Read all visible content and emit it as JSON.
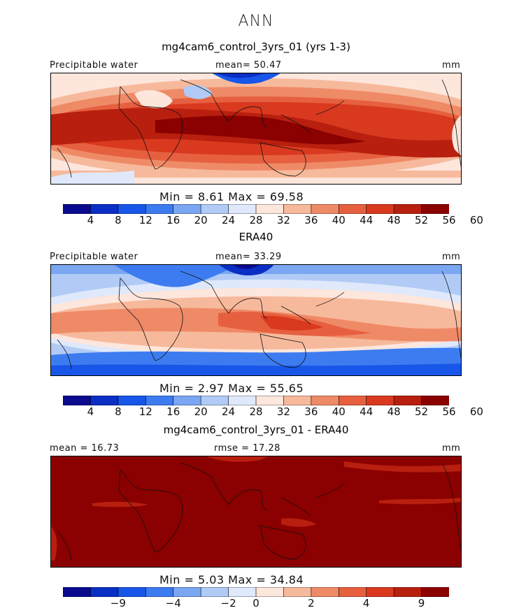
{
  "title": "ANN",
  "colors": {
    "ramp": [
      "#0a0a8f",
      "#0b2fc4",
      "#1756e8",
      "#3d7cf0",
      "#7aa6f2",
      "#b1cbf6",
      "#dfe9fb",
      "#fde6dc",
      "#f7b99c",
      "#ef8a67",
      "#e6603f",
      "#d9391f",
      "#b81f0e",
      "#8b0000"
    ]
  },
  "panels": [
    {
      "title": "mg4cam6_control_3yrs_01 (yrs 1-3)",
      "left_label": "Precipitable water",
      "center_label": "mean=  50.47",
      "units": "mm",
      "minmax": "Min =    8.61  Max =   69.58",
      "ticks": [
        "4",
        "8",
        "12",
        "16",
        "20",
        "24",
        "28",
        "32",
        "36",
        "40",
        "44",
        "48",
        "52",
        "56",
        "60"
      ],
      "chart_data": {
        "type": "heatmap",
        "field": "Precipitable water",
        "units": "mm",
        "mean": 50.47,
        "min": 8.61,
        "max": 69.58,
        "levels": [
          4,
          8,
          12,
          16,
          20,
          24,
          28,
          32,
          36,
          40,
          44,
          48,
          52,
          56,
          60
        ]
      }
    },
    {
      "title": "ERA40",
      "left_label": "Precipitable water",
      "center_label": "mean=  33.29",
      "units": "mm",
      "minmax": "Min =    2.97  Max =   55.65",
      "ticks": [
        "4",
        "8",
        "12",
        "16",
        "20",
        "24",
        "28",
        "32",
        "36",
        "40",
        "44",
        "48",
        "52",
        "56",
        "60"
      ],
      "chart_data": {
        "type": "heatmap",
        "field": "Precipitable water",
        "units": "mm",
        "mean": 33.29,
        "min": 2.97,
        "max": 55.65,
        "levels": [
          4,
          8,
          12,
          16,
          20,
          24,
          28,
          32,
          36,
          40,
          44,
          48,
          52,
          56,
          60
        ]
      }
    },
    {
      "title": "mg4cam6_control_3yrs_01 - ERA40",
      "left_label": "mean =   16.73",
      "center_label": "rmse =   17.28",
      "units": "mm",
      "minmax": "Min =    5.03  Max =   34.84",
      "ticks": [
        "−9",
        "−4",
        "−2",
        "0",
        "2",
        "4",
        "9"
      ],
      "chart_data": {
        "type": "heatmap",
        "field": "difference",
        "units": "mm",
        "mean": 16.73,
        "rmse": 17.28,
        "min": 5.03,
        "max": 34.84,
        "levels": [
          -9,
          -4,
          -2,
          0,
          2,
          4,
          9
        ]
      }
    }
  ]
}
